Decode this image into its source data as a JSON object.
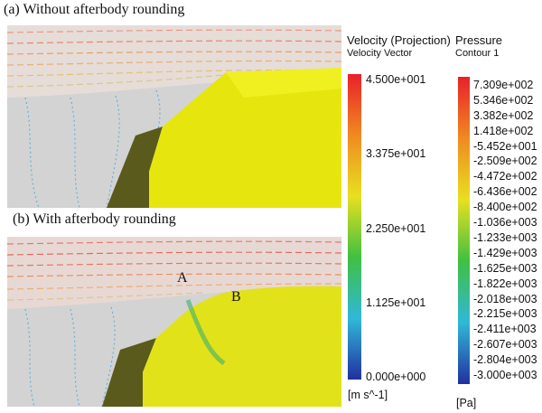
{
  "panel_a": {
    "label": "(a) Without afterbody rounding"
  },
  "panel_b": {
    "label": "(b) With afterbody rounding",
    "points": [
      "A",
      "B"
    ]
  },
  "velocity_legend": {
    "title": "Velocity (Projection)",
    "subtitle": "Velocity Vector",
    "labels": [
      "4.500e+001",
      "3.375e+001",
      "2.250e+001",
      "1.125e+001",
      "0.000e+000"
    ],
    "unit": "[m s^-1]"
  },
  "pressure_legend": {
    "title": "Pressure",
    "subtitle": "Contour 1",
    "labels": [
      "7.309e+002",
      "5.346e+002",
      "3.382e+002",
      "1.418e+002",
      "-5.452e+001",
      "-2.509e+002",
      "-4.472e+002",
      "-6.436e+002",
      "-8.400e+002",
      "-1.036e+003",
      "-1.233e+003",
      "-1.429e+003",
      "-1.625e+003",
      "-1.822e+003",
      "-2.018e+003",
      "-2.215e+003",
      "-2.411e+003",
      "-2.607e+003",
      "-2.804e+003",
      "-3.000e+003"
    ],
    "unit": "[Pa]"
  }
}
